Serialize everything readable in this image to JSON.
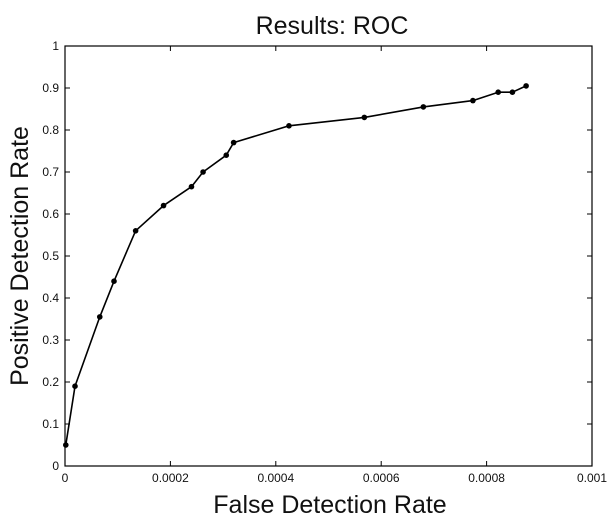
{
  "chart_data": {
    "type": "line",
    "title": "Results: ROC",
    "xlabel": "False Detection Rate",
    "ylabel": "Positive Detection Rate",
    "xlim": [
      0,
      0.001
    ],
    "ylim": [
      0,
      1
    ],
    "grid": false,
    "legend": "none",
    "xticks": [
      "0",
      "0.0002",
      "0.0004",
      "0.0006",
      "0.0008",
      "0.001"
    ],
    "yticks": [
      "0",
      "0.1",
      "0.2",
      "0.3",
      "0.4",
      "0.5",
      "0.6",
      "0.7",
      "0.8",
      "0.9",
      "1"
    ],
    "series": [
      {
        "x": [
          1.5e-06,
          1.9e-05,
          6.6e-05,
          9.3e-05,
          0.000134,
          0.000187,
          0.00024,
          0.000262,
          0.000306,
          0.00032,
          0.000425,
          0.000568,
          0.00068,
          0.000774,
          0.000822,
          0.000849,
          0.000875
        ],
        "y": [
          0.05,
          0.19,
          0.355,
          0.44,
          0.56,
          0.62,
          0.665,
          0.7,
          0.74,
          0.77,
          0.81,
          0.83,
          0.855,
          0.87,
          0.89,
          0.89,
          0.905
        ],
        "color": "#000000"
      }
    ]
  }
}
